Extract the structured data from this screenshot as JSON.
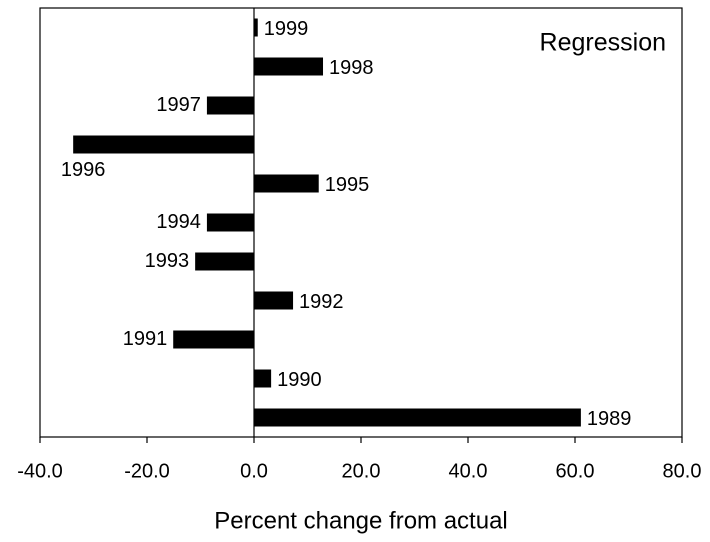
{
  "chart_data": {
    "type": "barh",
    "annotation": "Regression",
    "x_label": "Percent change from actual",
    "categories": [
      "1999",
      "1998",
      "1997",
      "1996",
      "1995",
      "1994",
      "1993",
      "1992",
      "1991",
      "1990",
      "1989"
    ],
    "values": [
      0.7,
      12.9,
      -8.8,
      -33.8,
      12.1,
      -8.8,
      -11.0,
      7.3,
      -15.1,
      3.2,
      61.1
    ],
    "color": "#000000",
    "xlim": [
      -40,
      80
    ],
    "xticks": [
      {
        "value": -40,
        "label": "-40.0"
      },
      {
        "value": -20,
        "label": "-20.0"
      },
      {
        "value": 0,
        "label": "0.0"
      },
      {
        "value": 20,
        "label": "20.0"
      },
      {
        "value": 40,
        "label": "40.0"
      },
      {
        "value": 60,
        "label": "60.0"
      },
      {
        "value": 80,
        "label": "80.0"
      }
    ]
  }
}
